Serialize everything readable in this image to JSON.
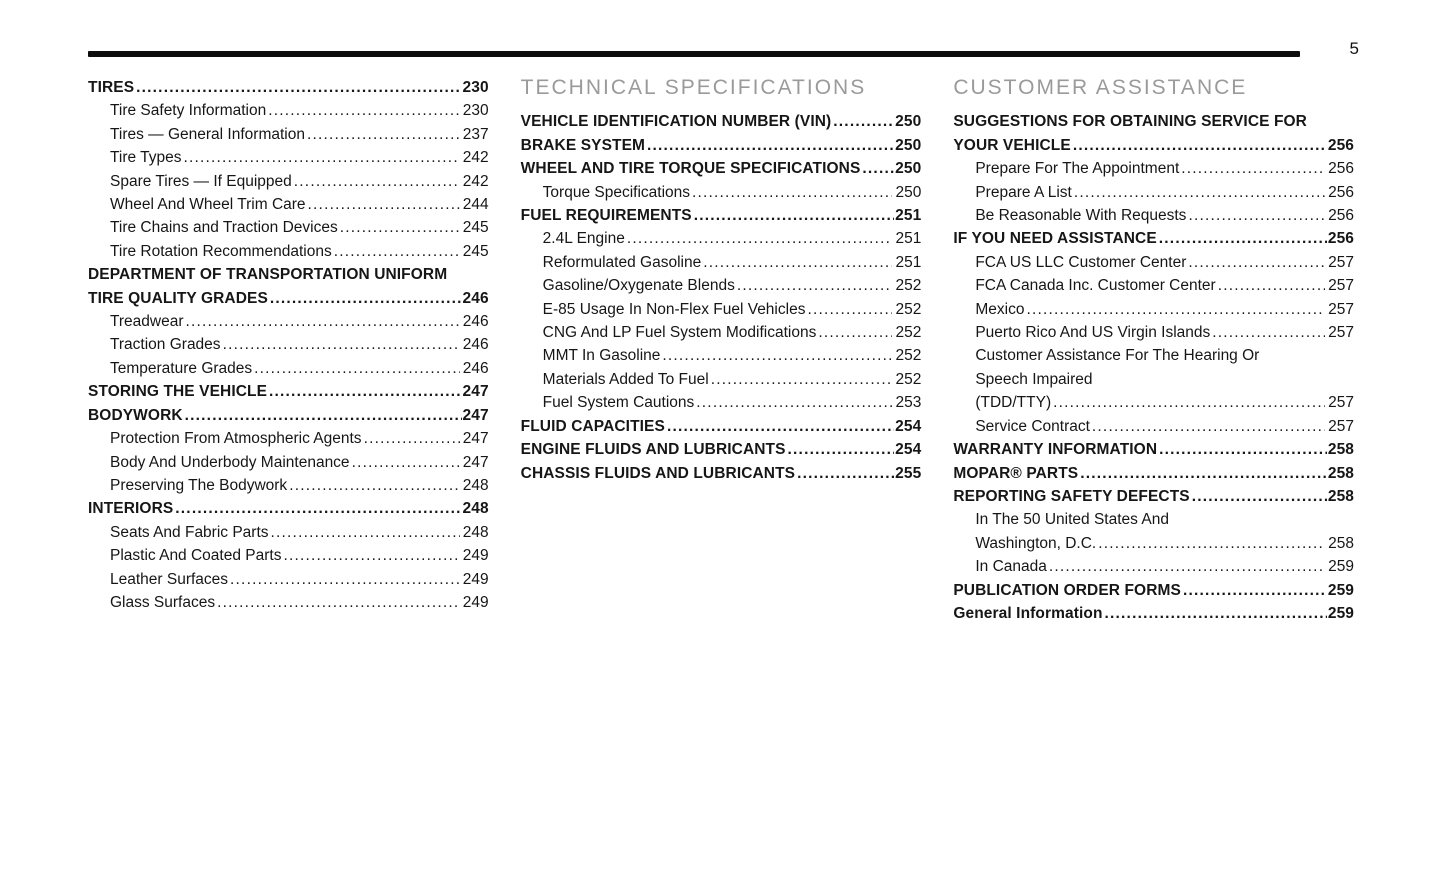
{
  "page": {
    "number": "5"
  },
  "colors": {
    "heading_gray": "#9a9a9a",
    "text": "#161616",
    "rule": "#0d0d0d"
  },
  "columns": [
    {
      "heading": "",
      "entries": [
        {
          "lines": [
            "TIRES"
          ],
          "page": "230",
          "bold": true,
          "indent": false
        },
        {
          "lines": [
            "Tire Safety Information"
          ],
          "page": "230",
          "bold": false,
          "indent": true
        },
        {
          "lines": [
            "Tires — General Information"
          ],
          "page": "237",
          "bold": false,
          "indent": true
        },
        {
          "lines": [
            "Tire Types"
          ],
          "page": "242",
          "bold": false,
          "indent": true
        },
        {
          "lines": [
            "Spare Tires — If Equipped"
          ],
          "page": "242",
          "bold": false,
          "indent": true
        },
        {
          "lines": [
            "Wheel And Wheel Trim Care"
          ],
          "page": "244",
          "bold": false,
          "indent": true
        },
        {
          "lines": [
            "Tire Chains and Traction Devices"
          ],
          "page": "245",
          "bold": false,
          "indent": true
        },
        {
          "lines": [
            "Tire Rotation Recommendations"
          ],
          "page": "245",
          "bold": false,
          "indent": true
        },
        {
          "lines": [
            "DEPARTMENT OF TRANSPORTATION UNIFORM",
            "TIRE QUALITY GRADES"
          ],
          "page": "246",
          "bold": true,
          "indent": false
        },
        {
          "lines": [
            "Treadwear"
          ],
          "page": "246",
          "bold": false,
          "indent": true
        },
        {
          "lines": [
            "Traction Grades"
          ],
          "page": "246",
          "bold": false,
          "indent": true
        },
        {
          "lines": [
            "Temperature Grades"
          ],
          "page": "246",
          "bold": false,
          "indent": true
        },
        {
          "lines": [
            "STORING THE VEHICLE"
          ],
          "page": "247",
          "bold": true,
          "indent": false
        },
        {
          "lines": [
            "BODYWORK"
          ],
          "page": "247",
          "bold": true,
          "indent": false
        },
        {
          "lines": [
            "Protection From Atmospheric Agents"
          ],
          "page": "247",
          "bold": false,
          "indent": true
        },
        {
          "lines": [
            "Body And Underbody Maintenance"
          ],
          "page": "247",
          "bold": false,
          "indent": true
        },
        {
          "lines": [
            "Preserving The Bodywork"
          ],
          "page": "248",
          "bold": false,
          "indent": true
        },
        {
          "lines": [
            "INTERIORS"
          ],
          "page": "248",
          "bold": true,
          "indent": false
        },
        {
          "lines": [
            "Seats And Fabric Parts"
          ],
          "page": "248",
          "bold": false,
          "indent": true
        },
        {
          "lines": [
            "Plastic And Coated Parts"
          ],
          "page": "249",
          "bold": false,
          "indent": true
        },
        {
          "lines": [
            "Leather Surfaces"
          ],
          "page": "249",
          "bold": false,
          "indent": true
        },
        {
          "lines": [
            "Glass Surfaces"
          ],
          "page": "249",
          "bold": false,
          "indent": true
        }
      ]
    },
    {
      "heading": "TECHNICAL SPECIFICATIONS",
      "entries": [
        {
          "lines": [
            "VEHICLE IDENTIFICATION NUMBER (VIN)"
          ],
          "page": "250",
          "bold": true,
          "indent": false
        },
        {
          "lines": [
            "BRAKE SYSTEM"
          ],
          "page": "250",
          "bold": true,
          "indent": false
        },
        {
          "lines": [
            "WHEEL AND TIRE TORQUE SPECIFICATIONS"
          ],
          "page": "250",
          "bold": true,
          "indent": false
        },
        {
          "lines": [
            "Torque Specifications"
          ],
          "page": "250",
          "bold": false,
          "indent": true
        },
        {
          "lines": [
            "FUEL REQUIREMENTS"
          ],
          "page": "251",
          "bold": true,
          "indent": false
        },
        {
          "lines": [
            "2.4L Engine"
          ],
          "page": "251",
          "bold": false,
          "indent": true
        },
        {
          "lines": [
            "Reformulated Gasoline"
          ],
          "page": "251",
          "bold": false,
          "indent": true
        },
        {
          "lines": [
            "Gasoline/Oxygenate Blends"
          ],
          "page": "252",
          "bold": false,
          "indent": true
        },
        {
          "lines": [
            "E-85 Usage In Non-Flex Fuel Vehicles"
          ],
          "page": "252",
          "bold": false,
          "indent": true
        },
        {
          "lines": [
            "CNG And LP Fuel System Modifications"
          ],
          "page": "252",
          "bold": false,
          "indent": true
        },
        {
          "lines": [
            "MMT In Gasoline"
          ],
          "page": "252",
          "bold": false,
          "indent": true
        },
        {
          "lines": [
            "Materials Added To Fuel"
          ],
          "page": "252",
          "bold": false,
          "indent": true
        },
        {
          "lines": [
            "Fuel System Cautions"
          ],
          "page": "253",
          "bold": false,
          "indent": true
        },
        {
          "lines": [
            "FLUID CAPACITIES"
          ],
          "page": "254",
          "bold": true,
          "indent": false
        },
        {
          "lines": [
            "ENGINE FLUIDS AND LUBRICANTS"
          ],
          "page": "254",
          "bold": true,
          "indent": false
        },
        {
          "lines": [
            "CHASSIS FLUIDS AND LUBRICANTS"
          ],
          "page": "255",
          "bold": true,
          "indent": false
        }
      ]
    },
    {
      "heading": "CUSTOMER ASSISTANCE",
      "entries": [
        {
          "lines": [
            "SUGGESTIONS FOR OBTAINING SERVICE FOR",
            "YOUR VEHICLE"
          ],
          "page": "256",
          "bold": true,
          "indent": false
        },
        {
          "lines": [
            "Prepare For The Appointment"
          ],
          "page": "256",
          "bold": false,
          "indent": true
        },
        {
          "lines": [
            "Prepare A List"
          ],
          "page": "256",
          "bold": false,
          "indent": true
        },
        {
          "lines": [
            "Be Reasonable With Requests"
          ],
          "page": "256",
          "bold": false,
          "indent": true
        },
        {
          "lines": [
            "IF YOU NEED ASSISTANCE"
          ],
          "page": "256",
          "bold": true,
          "indent": false
        },
        {
          "lines": [
            "FCA US LLC Customer Center"
          ],
          "page": "257",
          "bold": false,
          "indent": true
        },
        {
          "lines": [
            "FCA Canada Inc. Customer Center"
          ],
          "page": "257",
          "bold": false,
          "indent": true
        },
        {
          "lines": [
            "Mexico"
          ],
          "page": "257",
          "bold": false,
          "indent": true
        },
        {
          "lines": [
            "Puerto Rico And US Virgin Islands"
          ],
          "page": "257",
          "bold": false,
          "indent": true
        },
        {
          "lines": [
            "Customer Assistance For The Hearing Or",
            "Speech Impaired",
            "(TDD/TTY)"
          ],
          "page": "257",
          "bold": false,
          "indent": true
        },
        {
          "lines": [
            "Service Contract"
          ],
          "page": "257",
          "bold": false,
          "indent": true
        },
        {
          "lines": [
            "WARRANTY INFORMATION"
          ],
          "page": "258",
          "bold": true,
          "indent": false
        },
        {
          "lines": [
            "MOPAR® PARTS"
          ],
          "page": "258",
          "bold": true,
          "indent": false
        },
        {
          "lines": [
            "REPORTING SAFETY DEFECTS"
          ],
          "page": "258",
          "bold": true,
          "indent": false
        },
        {
          "lines": [
            "In The 50 United States And",
            "Washington, D.C."
          ],
          "page": "258",
          "bold": false,
          "indent": true
        },
        {
          "lines": [
            "In Canada"
          ],
          "page": "259",
          "bold": false,
          "indent": true
        },
        {
          "lines": [
            "PUBLICATION ORDER FORMS"
          ],
          "page": "259",
          "bold": true,
          "indent": false
        },
        {
          "lines": [
            "General Information"
          ],
          "page": "259",
          "bold": true,
          "indent": false
        }
      ]
    }
  ]
}
